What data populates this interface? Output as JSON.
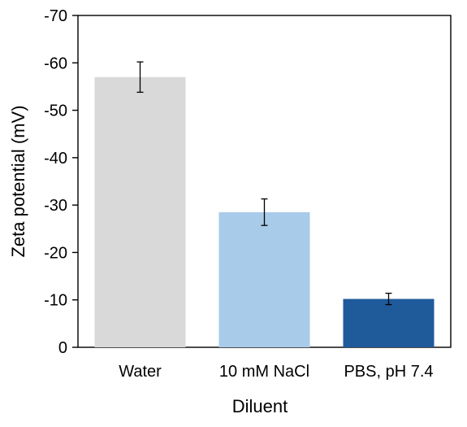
{
  "chart_data": {
    "type": "bar",
    "title": "",
    "xlabel": "Diluent",
    "ylabel": "Zeta potential (mV)",
    "categories": [
      "Water",
      "10 mM NaCl",
      "PBS, pH 7.4"
    ],
    "values": [
      -57,
      -28.5,
      -10.2
    ],
    "error": [
      3.2,
      2.8,
      1.2
    ],
    "colors": [
      "#d9d9d9",
      "#a9cbea",
      "#1f5a9b"
    ],
    "ylim": [
      0,
      -70
    ],
    "yticks": [
      0,
      -10,
      -20,
      -30,
      -40,
      -50,
      -60,
      -70
    ],
    "ytick_labels": [
      "0",
      "-10",
      "-20",
      "-30",
      "-40",
      "-50",
      "-60",
      "-70"
    ],
    "axis_inverted": true,
    "grid": false,
    "legend": "none"
  }
}
